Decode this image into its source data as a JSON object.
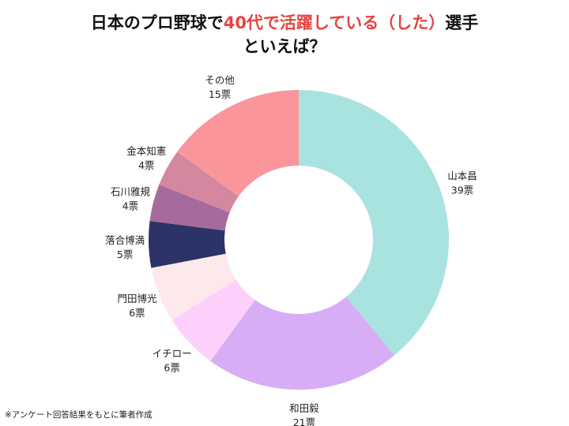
{
  "title": {
    "prefix": "日本のプロ野球で",
    "highlight": "40代で活躍している（した）",
    "suffix": "選手",
    "line2": "といえば？",
    "highlight_color": "#e8433f"
  },
  "footnote": "※アンケート回答結果をもとに筆者作成",
  "chart_data": {
    "type": "pie",
    "donut": true,
    "unit": "票",
    "slices": [
      {
        "label": "山本昌",
        "value": 39,
        "color": "#a8e3e0"
      },
      {
        "label": "和田毅",
        "value": 21,
        "color": "#d7aef5"
      },
      {
        "label": "イチロー",
        "value": 6,
        "color": "#fdd0fc"
      },
      {
        "label": "門田博光",
        "value": 6,
        "color": "#fde9eb"
      },
      {
        "label": "落合博満",
        "value": 5,
        "color": "#2c3366"
      },
      {
        "label": "石川雅規",
        "value": 4,
        "color": "#a66b9c"
      },
      {
        "label": "金本知憲",
        "value": 4,
        "color": "#d4879e"
      },
      {
        "label": "その他",
        "value": 15,
        "color": "#fa969b"
      }
    ]
  }
}
